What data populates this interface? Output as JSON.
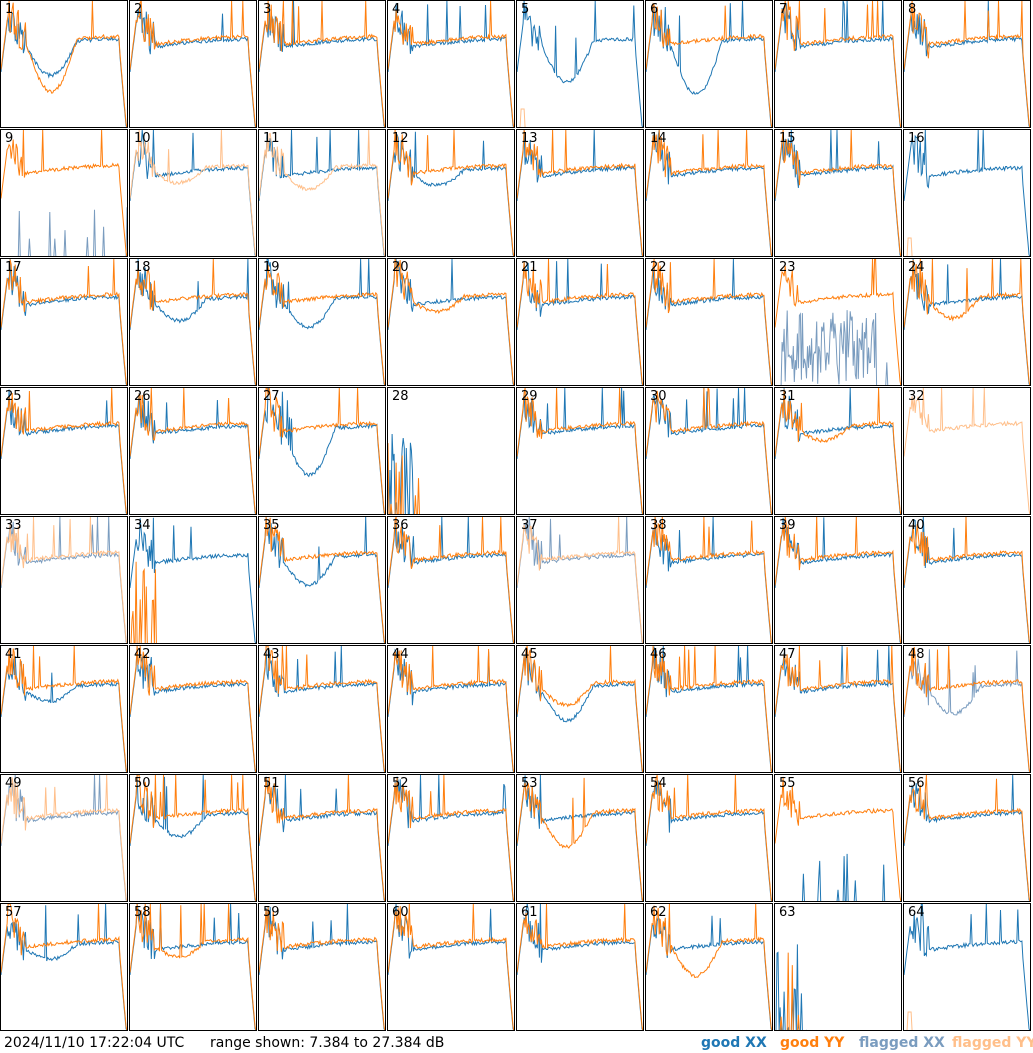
{
  "colors": {
    "good_xx": "#1f77b4",
    "good_yy": "#ff7f0e",
    "flagged_xx": "#7a9cbf",
    "flagged_yy": "#ffbf8a"
  },
  "footer": {
    "timestamp": "2024/11/10 17:22:04 UTC",
    "range": "range shown: 7.384 to 27.384 dB",
    "legend": [
      "good XX",
      "good YY",
      "flagged XX",
      "flagged YY"
    ]
  },
  "chart_data": {
    "type": "line",
    "title": "",
    "xlabel": "",
    "ylabel": "",
    "ylim": [
      7.384,
      27.384
    ],
    "unit": "dB",
    "grid": false,
    "legend_placement": "bottom-right",
    "series_names": [
      "good XX",
      "good YY",
      "flagged XX",
      "flagged YY"
    ],
    "panels": [
      {
        "label": "1",
        "xx": "good",
        "yy": "good",
        "style": "normal",
        "xx_dip": 5,
        "yy_dip": 8
      },
      {
        "label": "2",
        "xx": "good",
        "yy": "good",
        "style": "normal"
      },
      {
        "label": "3",
        "xx": "good",
        "yy": "good",
        "style": "normal"
      },
      {
        "label": "4",
        "xx": "good",
        "yy": "good",
        "style": "normal"
      },
      {
        "label": "5",
        "xx": "good",
        "yy": "flagged",
        "style": "xx_only",
        "xx_dip": 6
      },
      {
        "label": "6",
        "xx": "good",
        "yy": "good",
        "style": "normal",
        "xx_dip": 8
      },
      {
        "label": "7",
        "xx": "good",
        "yy": "good",
        "style": "normal"
      },
      {
        "label": "8",
        "xx": "good",
        "yy": "good",
        "style": "normal"
      },
      {
        "label": "9",
        "xx": "flagged",
        "yy": "good",
        "style": "xx_low"
      },
      {
        "label": "10",
        "xx": "good",
        "yy": "flagged",
        "style": "normal",
        "yy_dip": 2
      },
      {
        "label": "11",
        "xx": "good",
        "yy": "flagged",
        "style": "normal",
        "yy_dip": 3
      },
      {
        "label": "12",
        "xx": "good",
        "yy": "good",
        "style": "normal",
        "xx_dip": 2
      },
      {
        "label": "13",
        "xx": "good",
        "yy": "good",
        "style": "normal"
      },
      {
        "label": "14",
        "xx": "good",
        "yy": "good",
        "style": "normal"
      },
      {
        "label": "15",
        "xx": "good",
        "yy": "good",
        "style": "normal"
      },
      {
        "label": "16",
        "xx": "good",
        "yy": "flagged",
        "style": "xx_only"
      },
      {
        "label": "17",
        "xx": "good",
        "yy": "good",
        "style": "normal"
      },
      {
        "label": "18",
        "xx": "good",
        "yy": "good",
        "style": "normal",
        "xx_dip": 3
      },
      {
        "label": "19",
        "xx": "good",
        "yy": "good",
        "style": "normal",
        "xx_dip": 4
      },
      {
        "label": "20",
        "xx": "good",
        "yy": "good",
        "style": "normal",
        "yy_dip": 2
      },
      {
        "label": "21",
        "xx": "good",
        "yy": "good",
        "style": "normal"
      },
      {
        "label": "22",
        "xx": "good",
        "yy": "good",
        "style": "normal"
      },
      {
        "label": "23",
        "xx": "flagged",
        "yy": "good",
        "style": "xx_noise"
      },
      {
        "label": "24",
        "xx": "good",
        "yy": "good",
        "style": "normal",
        "yy_dip": 3
      },
      {
        "label": "25",
        "xx": "good",
        "yy": "good",
        "style": "normal"
      },
      {
        "label": "26",
        "xx": "good",
        "yy": "good",
        "style": "normal"
      },
      {
        "label": "27",
        "xx": "good",
        "yy": "good",
        "style": "normal",
        "xx_dip": 7
      },
      {
        "label": "28",
        "xx": "good",
        "yy": "good",
        "style": "dead"
      },
      {
        "label": "29",
        "xx": "good",
        "yy": "good",
        "style": "normal"
      },
      {
        "label": "30",
        "xx": "good",
        "yy": "good",
        "style": "normal"
      },
      {
        "label": "31",
        "xx": "good",
        "yy": "good",
        "style": "normal",
        "yy_dip": 2
      },
      {
        "label": "32",
        "xx": "flagged",
        "yy": "flagged",
        "style": "yy_only"
      },
      {
        "label": "33",
        "xx": "flagged",
        "yy": "flagged",
        "style": "normal"
      },
      {
        "label": "34",
        "xx": "good",
        "yy": "good",
        "style": "yy_low"
      },
      {
        "label": "35",
        "xx": "good",
        "yy": "good",
        "style": "normal",
        "xx_dip": 4
      },
      {
        "label": "36",
        "xx": "good",
        "yy": "good",
        "style": "normal"
      },
      {
        "label": "37",
        "xx": "flagged",
        "yy": "flagged",
        "style": "normal"
      },
      {
        "label": "38",
        "xx": "good",
        "yy": "good",
        "style": "normal"
      },
      {
        "label": "39",
        "xx": "good",
        "yy": "good",
        "style": "normal"
      },
      {
        "label": "40",
        "xx": "good",
        "yy": "good",
        "style": "normal"
      },
      {
        "label": "41",
        "xx": "good",
        "yy": "good",
        "style": "normal",
        "xx_dip": 2
      },
      {
        "label": "42",
        "xx": "good",
        "yy": "good",
        "style": "normal"
      },
      {
        "label": "43",
        "xx": "good",
        "yy": "good",
        "style": "normal"
      },
      {
        "label": "44",
        "xx": "good",
        "yy": "good",
        "style": "normal"
      },
      {
        "label": "45",
        "xx": "good",
        "yy": "good",
        "style": "normal",
        "xx_dip": 5,
        "yy_dip": 3
      },
      {
        "label": "46",
        "xx": "good",
        "yy": "good",
        "style": "normal"
      },
      {
        "label": "47",
        "xx": "good",
        "yy": "good",
        "style": "normal"
      },
      {
        "label": "48",
        "xx": "flagged",
        "yy": "good",
        "style": "normal",
        "xx_dip": 4
      },
      {
        "label": "49",
        "xx": "flagged",
        "yy": "flagged",
        "style": "normal"
      },
      {
        "label": "50",
        "xx": "good",
        "yy": "good",
        "style": "normal",
        "xx_dip": 3
      },
      {
        "label": "51",
        "xx": "good",
        "yy": "good",
        "style": "normal"
      },
      {
        "label": "52",
        "xx": "good",
        "yy": "good",
        "style": "normal"
      },
      {
        "label": "53",
        "xx": "good",
        "yy": "good",
        "style": "normal",
        "yy_dip": 5
      },
      {
        "label": "54",
        "xx": "good",
        "yy": "good",
        "style": "normal"
      },
      {
        "label": "55",
        "xx": "good",
        "yy": "good",
        "style": "xx_low"
      },
      {
        "label": "56",
        "xx": "good",
        "yy": "good",
        "style": "normal"
      },
      {
        "label": "57",
        "xx": "good",
        "yy": "good",
        "style": "normal",
        "xx_dip": 2
      },
      {
        "label": "58",
        "xx": "good",
        "yy": "good",
        "style": "normal",
        "yy_dip": 2
      },
      {
        "label": "59",
        "xx": "good",
        "yy": "good",
        "style": "normal"
      },
      {
        "label": "60",
        "xx": "good",
        "yy": "good",
        "style": "normal"
      },
      {
        "label": "61",
        "xx": "good",
        "yy": "good",
        "style": "normal"
      },
      {
        "label": "62",
        "xx": "good",
        "yy": "good",
        "style": "normal",
        "yy_dip": 5
      },
      {
        "label": "63",
        "xx": "good",
        "yy": "good",
        "style": "dead"
      },
      {
        "label": "64",
        "xx": "good",
        "yy": "flagged",
        "style": "xx_only"
      }
    ]
  }
}
